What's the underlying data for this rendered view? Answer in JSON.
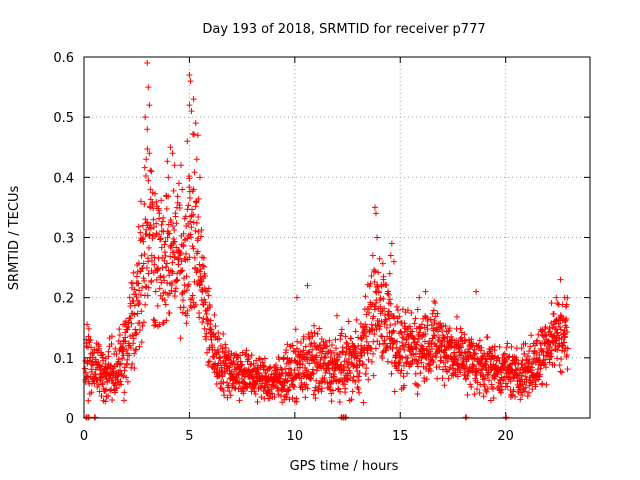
{
  "chart_data": {
    "type": "scatter",
    "title": "Day 193 of 2018, SRMTID for receiver p777",
    "xlabel": "GPS time / hours",
    "ylabel": "SRMTID / TECUs",
    "xlim": [
      0,
      24
    ],
    "ylim": [
      0,
      0.6
    ],
    "xticks": [
      0,
      5,
      10,
      15,
      20
    ],
    "yticks": [
      0,
      0.1,
      0.2,
      0.3,
      0.4,
      0.5,
      0.6
    ],
    "grid": true,
    "marker": "plus",
    "series_color": "#ff0000",
    "profile_x": [
      0.0,
      0.5,
      1.0,
      1.5,
      2.0,
      2.3,
      2.6,
      2.8,
      3.0,
      3.2,
      3.5,
      3.8,
      4.0,
      4.2,
      4.5,
      4.8,
      5.0,
      5.3,
      5.6,
      5.9,
      6.2,
      6.5,
      7.0,
      7.5,
      8.0,
      8.5,
      9.0,
      9.5,
      10.0,
      10.5,
      11.0,
      11.5,
      12.0,
      12.5,
      13.0,
      13.3,
      13.6,
      13.9,
      14.2,
      14.5,
      14.8,
      15.2,
      15.6,
      16.0,
      16.5,
      17.0,
      17.5,
      18.0,
      18.5,
      19.0,
      19.5,
      20.0,
      20.5,
      21.0,
      21.5,
      22.0,
      22.5,
      22.9
    ],
    "profile_y": [
      0.1,
      0.09,
      0.07,
      0.08,
      0.11,
      0.16,
      0.22,
      0.28,
      0.32,
      0.3,
      0.27,
      0.24,
      0.28,
      0.27,
      0.26,
      0.28,
      0.3,
      0.3,
      0.22,
      0.15,
      0.11,
      0.09,
      0.08,
      0.075,
      0.07,
      0.065,
      0.06,
      0.07,
      0.08,
      0.09,
      0.09,
      0.085,
      0.08,
      0.09,
      0.1,
      0.12,
      0.16,
      0.18,
      0.17,
      0.16,
      0.12,
      0.11,
      0.12,
      0.12,
      0.13,
      0.12,
      0.11,
      0.1,
      0.09,
      0.09,
      0.08,
      0.08,
      0.07,
      0.08,
      0.09,
      0.13,
      0.14,
      0.14
    ],
    "profile_spread": [
      0.04,
      0.035,
      0.03,
      0.04,
      0.05,
      0.07,
      0.09,
      0.1,
      0.11,
      0.1,
      0.09,
      0.08,
      0.09,
      0.08,
      0.08,
      0.09,
      0.1,
      0.09,
      0.07,
      0.05,
      0.04,
      0.035,
      0.03,
      0.03,
      0.025,
      0.025,
      0.025,
      0.03,
      0.035,
      0.04,
      0.04,
      0.035,
      0.035,
      0.04,
      0.04,
      0.05,
      0.06,
      0.06,
      0.06,
      0.055,
      0.045,
      0.04,
      0.045,
      0.045,
      0.045,
      0.04,
      0.04,
      0.035,
      0.035,
      0.035,
      0.03,
      0.03,
      0.03,
      0.03,
      0.035,
      0.04,
      0.04,
      0.04
    ],
    "peaks": [
      {
        "x": 3.0,
        "y": 0.59
      },
      {
        "x": 3.05,
        "y": 0.55
      },
      {
        "x": 3.1,
        "y": 0.52
      },
      {
        "x": 2.9,
        "y": 0.5
      },
      {
        "x": 3.0,
        "y": 0.48
      },
      {
        "x": 3.1,
        "y": 0.44
      },
      {
        "x": 2.95,
        "y": 0.43
      },
      {
        "x": 3.2,
        "y": 0.41
      },
      {
        "x": 3.15,
        "y": 0.38
      },
      {
        "x": 4.1,
        "y": 0.45
      },
      {
        "x": 4.2,
        "y": 0.44
      },
      {
        "x": 4.3,
        "y": 0.42
      },
      {
        "x": 4.0,
        "y": 0.4
      },
      {
        "x": 4.6,
        "y": 0.42
      },
      {
        "x": 4.5,
        "y": 0.39
      },
      {
        "x": 5.0,
        "y": 0.57
      },
      {
        "x": 5.05,
        "y": 0.56
      },
      {
        "x": 5.0,
        "y": 0.52
      },
      {
        "x": 5.1,
        "y": 0.51
      },
      {
        "x": 5.2,
        "y": 0.53
      },
      {
        "x": 5.3,
        "y": 0.49
      },
      {
        "x": 5.4,
        "y": 0.47
      },
      {
        "x": 5.35,
        "y": 0.43
      },
      {
        "x": 5.5,
        "y": 0.4
      },
      {
        "x": 4.9,
        "y": 0.46
      },
      {
        "x": 5.2,
        "y": 0.38
      },
      {
        "x": 2.7,
        "y": 0.36
      },
      {
        "x": 13.8,
        "y": 0.35
      },
      {
        "x": 13.85,
        "y": 0.34
      },
      {
        "x": 13.9,
        "y": 0.3
      },
      {
        "x": 14.6,
        "y": 0.29
      },
      {
        "x": 14.55,
        "y": 0.27
      },
      {
        "x": 14.7,
        "y": 0.26
      },
      {
        "x": 14.5,
        "y": 0.24
      },
      {
        "x": 13.7,
        "y": 0.27
      },
      {
        "x": 14.2,
        "y": 0.23
      },
      {
        "x": 10.6,
        "y": 0.22
      },
      {
        "x": 10.1,
        "y": 0.2
      },
      {
        "x": 22.6,
        "y": 0.23
      },
      {
        "x": 18.6,
        "y": 0.21
      },
      {
        "x": 22.4,
        "y": 0.2
      },
      {
        "x": 22.8,
        "y": 0.2
      },
      {
        "x": 16.2,
        "y": 0.21
      },
      {
        "x": 15.9,
        "y": 0.2
      },
      {
        "x": 12.0,
        "y": 0.17
      }
    ],
    "zero_points": [
      0.1,
      0.2,
      0.5,
      12.2,
      12.3,
      12.4,
      18.1,
      20.0
    ]
  }
}
